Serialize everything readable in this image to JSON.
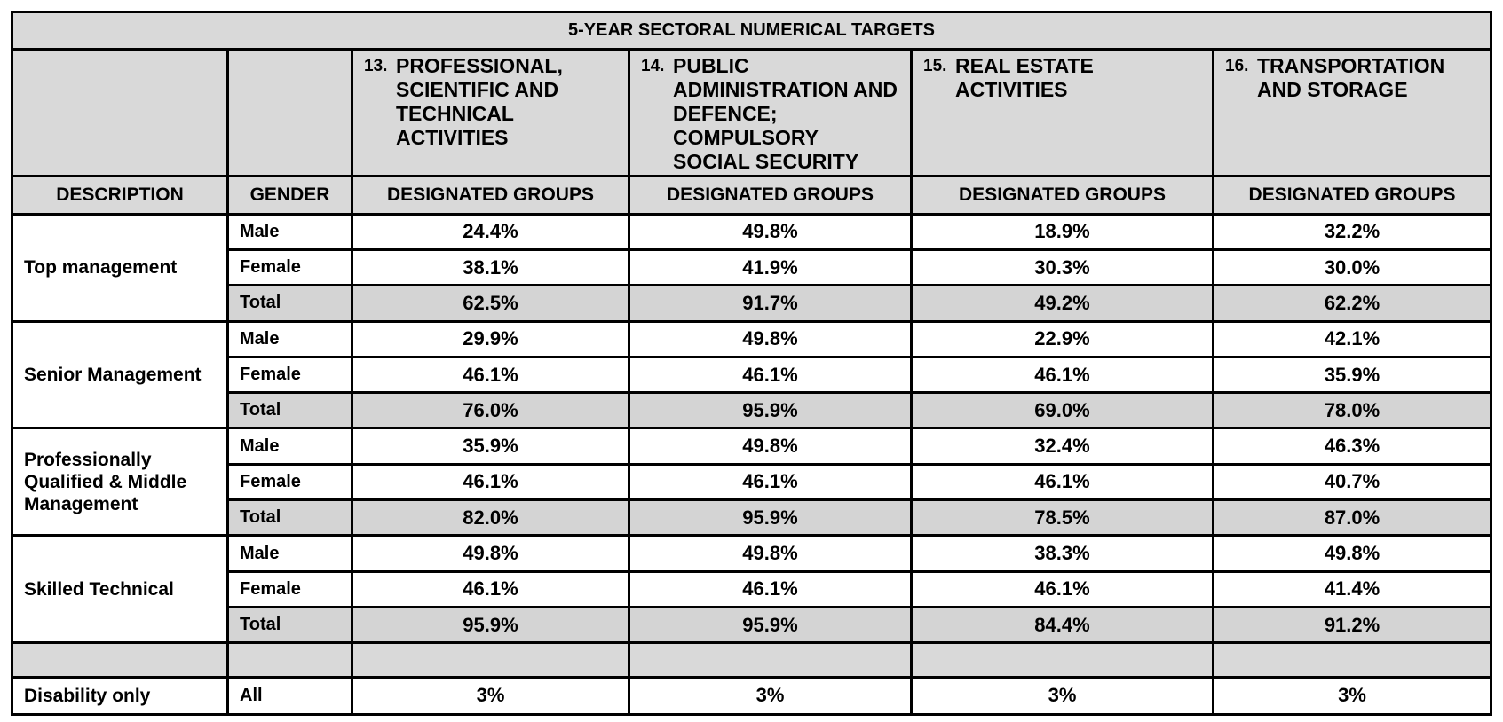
{
  "table": {
    "title": "5-YEAR SECTORAL NUMERICAL TARGETS",
    "sectors": [
      {
        "number": "13.",
        "name": "PROFESSIONAL, SCIENTIFIC AND TECHNICAL ACTIVITIES"
      },
      {
        "number": "14.",
        "name": "PUBLIC ADMINISTRATION AND DEFENCE; COMPULSORY SOCIAL SECURITY"
      },
      {
        "number": "15.",
        "name": "REAL ESTATE ACTIVITIES"
      },
      {
        "number": "16.",
        "name": "TRANSPORTATION AND STORAGE"
      }
    ],
    "headers": {
      "description": "DESCRIPTION",
      "gender": "GENDER",
      "groups": "DESIGNATED GROUPS"
    },
    "groups": [
      {
        "description": "Top management",
        "rows": [
          {
            "gender": "Male",
            "values": [
              "24.4%",
              "49.8%",
              "18.9%",
              "32.2%"
            ]
          },
          {
            "gender": "Female",
            "values": [
              "38.1%",
              "41.9%",
              "30.3%",
              "30.0%"
            ]
          },
          {
            "gender": "Total",
            "values": [
              "62.5%",
              "91.7%",
              "49.2%",
              "62.2%"
            ]
          }
        ]
      },
      {
        "description": "Senior Management",
        "rows": [
          {
            "gender": "Male",
            "values": [
              "29.9%",
              "49.8%",
              "22.9%",
              "42.1%"
            ]
          },
          {
            "gender": "Female",
            "values": [
              "46.1%",
              "46.1%",
              "46.1%",
              "35.9%"
            ]
          },
          {
            "gender": "Total",
            "values": [
              "76.0%",
              "95.9%",
              "69.0%",
              "78.0%"
            ]
          }
        ]
      },
      {
        "description": "Professionally Qualified & Middle Management",
        "rows": [
          {
            "gender": "Male",
            "values": [
              "35.9%",
              "49.8%",
              "32.4%",
              "46.3%"
            ]
          },
          {
            "gender": "Female",
            "values": [
              "46.1%",
              "46.1%",
              "46.1%",
              "40.7%"
            ]
          },
          {
            "gender": "Total",
            "values": [
              "82.0%",
              "95.9%",
              "78.5%",
              "87.0%"
            ]
          }
        ]
      },
      {
        "description": "Skilled Technical",
        "rows": [
          {
            "gender": "Male",
            "values": [
              "49.8%",
              "49.8%",
              "38.3%",
              "49.8%"
            ]
          },
          {
            "gender": "Female",
            "values": [
              "46.1%",
              "46.1%",
              "46.1%",
              "41.4%"
            ]
          },
          {
            "gender": "Total",
            "values": [
              "95.9%",
              "95.9%",
              "84.4%",
              "91.2%"
            ]
          }
        ]
      }
    ],
    "disability": {
      "description": "Disability only",
      "gender": "All",
      "values": [
        "3%",
        "3%",
        "3%",
        "3%"
      ]
    }
  }
}
